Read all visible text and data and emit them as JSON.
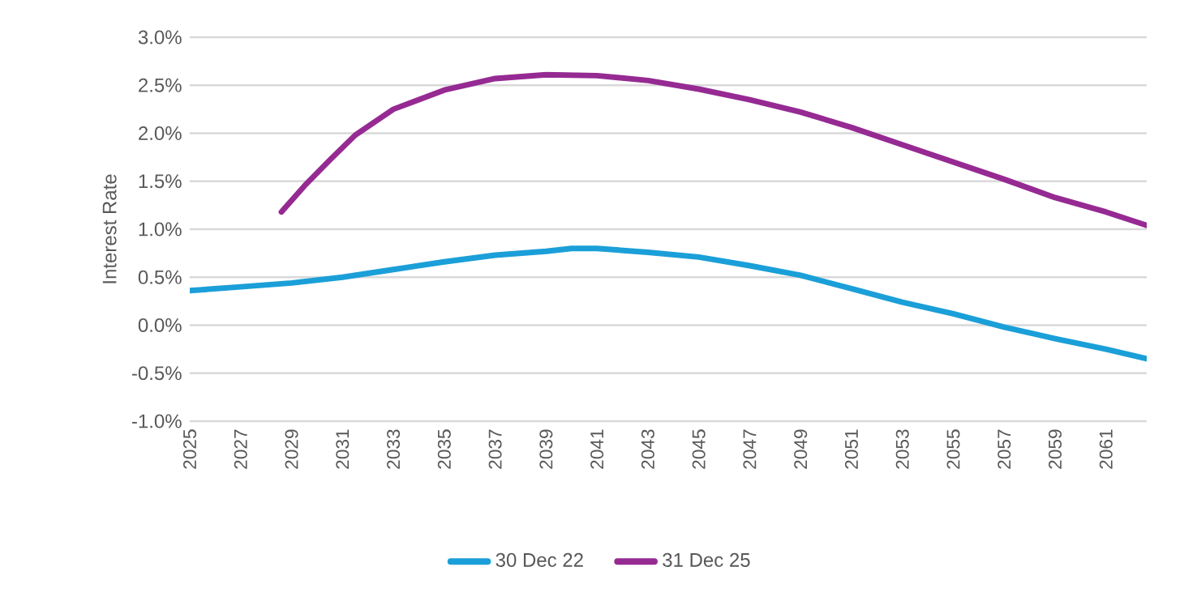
{
  "chart_data": {
    "type": "line",
    "ylabel": "Interest Rate",
    "xlim": [
      2025,
      2062.6
    ],
    "xticks": [
      2025,
      2027,
      2029,
      2031,
      2033,
      2035,
      2037,
      2039,
      2041,
      2043,
      2045,
      2047,
      2049,
      2051,
      2053,
      2055,
      2057,
      2059,
      2061
    ],
    "ylim": [
      -1,
      3
    ],
    "yticks": [
      {
        "value": -1,
        "label": "-1.0%"
      },
      {
        "value": -0.5,
        "label": "-0.5%"
      },
      {
        "value": 0,
        "label": "0.0%"
      },
      {
        "value": 0.5,
        "label": "0.5%"
      },
      {
        "value": 1,
        "label": "1.0%"
      },
      {
        "value": 1.5,
        "label": "1.5%"
      },
      {
        "value": 2,
        "label": "2.0%"
      },
      {
        "value": 2.5,
        "label": "2.5%"
      },
      {
        "value": 3,
        "label": "3.0%"
      }
    ],
    "grid": "y",
    "legend": "bottom",
    "marker": "none",
    "line_style": "solid",
    "series": [
      {
        "name": "30 Dec 22",
        "color": "#1b9fd8",
        "x": [
          2025,
          2027,
          2029,
          2031,
          2033,
          2035,
          2037,
          2039,
          2040,
          2041,
          2043,
          2045,
          2047,
          2049,
          2051,
          2053,
          2055,
          2057,
          2059,
          2061,
          2062.6
        ],
        "values": [
          0.36,
          0.4,
          0.44,
          0.5,
          0.58,
          0.66,
          0.73,
          0.77,
          0.8,
          0.8,
          0.76,
          0.71,
          0.62,
          0.52,
          0.38,
          0.24,
          0.12,
          -0.02,
          -0.14,
          -0.25,
          -0.35
        ]
      },
      {
        "name": "31 Dec 25",
        "color": "#962a93",
        "x": [
          2028.6,
          2029.5,
          2030.5,
          2031.5,
          2033,
          2035,
          2037,
          2039,
          2041,
          2043,
          2045,
          2047,
          2049,
          2051,
          2053,
          2055,
          2057,
          2059,
          2061,
          2062.6
        ],
        "values": [
          1.18,
          1.45,
          1.72,
          1.98,
          2.25,
          2.45,
          2.57,
          2.61,
          2.6,
          2.55,
          2.46,
          2.35,
          2.22,
          2.06,
          1.88,
          1.7,
          1.52,
          1.33,
          1.18,
          1.04
        ]
      }
    ]
  }
}
